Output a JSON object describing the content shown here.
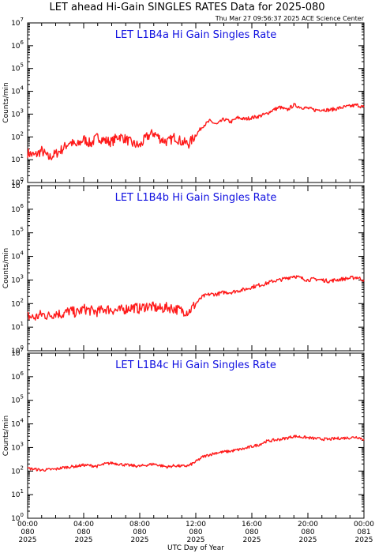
{
  "main_title": "LET ahead Hi-Gain SINGLES RATES Data for 2025-080",
  "timestamp": "Thu Mar 27 09:56:37 2025 ACE Science Center",
  "xlabel": "UTC Day of Year",
  "ylabel": "Counts/min",
  "colors": {
    "series": "#ff1a1a",
    "panel_title": "#1010e0",
    "axes": "#000000"
  },
  "x_ticks": [
    {
      "hour": 0,
      "lines": [
        "00:00",
        "080",
        "2025"
      ]
    },
    {
      "hour": 4,
      "lines": [
        "04:00",
        "080",
        "2025"
      ]
    },
    {
      "hour": 8,
      "lines": [
        "08:00",
        "080",
        "2025"
      ]
    },
    {
      "hour": 12,
      "lines": [
        "12:00",
        "080",
        "2025"
      ]
    },
    {
      "hour": 16,
      "lines": [
        "16:00",
        "080",
        "2025"
      ]
    },
    {
      "hour": 20,
      "lines": [
        "20:00",
        "080",
        "2025"
      ]
    },
    {
      "hour": 24,
      "lines": [
        "00:00",
        "081",
        "2025"
      ]
    }
  ],
  "y_ticks": [
    {
      "exp": 0,
      "base": "10",
      "sup": "0"
    },
    {
      "exp": 1,
      "base": "10",
      "sup": "1"
    },
    {
      "exp": 2,
      "base": "10",
      "sup": "2"
    },
    {
      "exp": 3,
      "base": "10",
      "sup": "3"
    },
    {
      "exp": 4,
      "base": "10",
      "sup": "4"
    },
    {
      "exp": 5,
      "base": "10",
      "sup": "5"
    },
    {
      "exp": 6,
      "base": "10",
      "sup": "6"
    },
    {
      "exp": 7,
      "base": "10",
      "sup": "7"
    }
  ],
  "chart_data": [
    {
      "type": "line",
      "title": "LET L1B4a Hi Gain Singles Rate",
      "y_scale": "log",
      "ylim": [
        1,
        10000000
      ],
      "xlim": [
        0,
        24
      ],
      "x_unit": "UTC hour of day 080",
      "grid": false,
      "x": [
        0,
        0.5,
        1,
        1.5,
        2,
        2.5,
        3,
        3.5,
        4,
        4.5,
        5,
        5.5,
        6,
        6.5,
        7,
        7.5,
        8,
        8.5,
        9,
        9.5,
        10,
        10.5,
        11,
        11.5,
        12,
        12.5,
        13,
        13.5,
        14,
        14.5,
        15,
        15.5,
        16,
        16.5,
        17,
        17.5,
        18,
        18.5,
        19,
        19.5,
        20,
        20.5,
        21,
        21.5,
        22,
        22.5,
        23,
        23.5,
        24
      ],
      "values": [
        20,
        15,
        25,
        12,
        18,
        30,
        60,
        40,
        80,
        50,
        100,
        70,
        60,
        110,
        80,
        50,
        40,
        100,
        150,
        80,
        60,
        100,
        60,
        50,
        120,
        300,
        500,
        350,
        600,
        450,
        700,
        600,
        700,
        800,
        1000,
        1500,
        2000,
        1500,
        2500,
        2000,
        1800,
        1500,
        1600,
        1500,
        1700,
        2000,
        2200,
        2500,
        2000
      ]
    },
    {
      "type": "line",
      "title": "LET L1B4b Hi Gain Singles Rate",
      "y_scale": "log",
      "ylim": [
        1,
        10000000
      ],
      "xlim": [
        0,
        24
      ],
      "x_unit": "UTC hour of day 080",
      "grid": false,
      "x": [
        0,
        0.5,
        1,
        1.5,
        2,
        2.5,
        3,
        3.5,
        4,
        4.5,
        5,
        5.5,
        6,
        6.5,
        7,
        7.5,
        8,
        8.5,
        9,
        9.5,
        10,
        10.5,
        11,
        11.5,
        12,
        12.5,
        13,
        13.5,
        14,
        14.5,
        15,
        15.5,
        16,
        16.5,
        17,
        17.5,
        18,
        18.5,
        19,
        19.5,
        20,
        20.5,
        21,
        21.5,
        22,
        22.5,
        23,
        23.5,
        24
      ],
      "values": [
        30,
        25,
        35,
        30,
        40,
        35,
        50,
        40,
        60,
        50,
        45,
        60,
        55,
        50,
        60,
        70,
        60,
        80,
        70,
        60,
        70,
        60,
        50,
        45,
        100,
        200,
        250,
        250,
        300,
        300,
        350,
        400,
        500,
        600,
        700,
        900,
        1000,
        1200,
        1500,
        1200,
        1000,
        1100,
        1000,
        900,
        1000,
        1100,
        1200,
        1300,
        1000
      ]
    },
    {
      "type": "line",
      "title": "LET L1B4c Hi Gain Singles Rate",
      "y_scale": "log",
      "ylim": [
        1,
        10000000
      ],
      "xlim": [
        0,
        24
      ],
      "x_unit": "UTC hour of day 080",
      "grid": false,
      "x": [
        0,
        0.5,
        1,
        1.5,
        2,
        2.5,
        3,
        3.5,
        4,
        4.5,
        5,
        5.5,
        6,
        6.5,
        7,
        7.5,
        8,
        8.5,
        9,
        9.5,
        10,
        10.5,
        11,
        11.5,
        12,
        12.5,
        13,
        13.5,
        14,
        14.5,
        15,
        15.5,
        16,
        16.5,
        17,
        17.5,
        18,
        18.5,
        19,
        19.5,
        20,
        20.5,
        21,
        21.5,
        22,
        22.5,
        23,
        23.5,
        24
      ],
      "values": [
        130,
        120,
        110,
        115,
        120,
        140,
        150,
        160,
        180,
        170,
        160,
        200,
        220,
        200,
        180,
        170,
        160,
        180,
        200,
        170,
        150,
        170,
        160,
        170,
        250,
        400,
        500,
        600,
        650,
        700,
        800,
        900,
        1100,
        1300,
        1800,
        2000,
        2200,
        2500,
        3000,
        2800,
        2600,
        2400,
        2300,
        2200,
        2400,
        2500,
        2600,
        2800,
        2200
      ]
    }
  ]
}
